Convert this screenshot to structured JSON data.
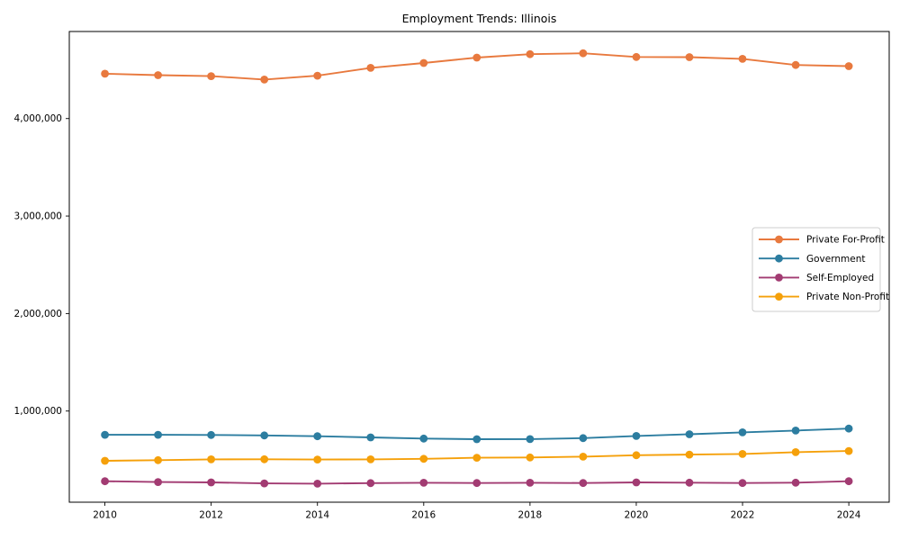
{
  "chart_data": {
    "type": "line",
    "title": "Employment Trends: Illinois",
    "xlabel": "",
    "ylabel": "",
    "grid": false,
    "legend_position": "center right",
    "xlim": [
      2009.33,
      2024.76
    ],
    "ylim": [
      65000,
      4893000
    ],
    "x_ticks": [
      2010,
      2012,
      2014,
      2016,
      2018,
      2020,
      2022,
      2024
    ],
    "y_ticks": [
      1000000,
      2000000,
      3000000,
      4000000
    ],
    "x": [
      2010,
      2011,
      2012,
      2013,
      2014,
      2015,
      2016,
      2017,
      2018,
      2019,
      2020,
      2021,
      2022,
      2023,
      2024
    ],
    "series": [
      {
        "name": "Private For-Profit",
        "color": "#E8793E",
        "values": [
          4460000,
          4445000,
          4435000,
          4400000,
          4440000,
          4520000,
          4570000,
          4625000,
          4660000,
          4670000,
          4632000,
          4630000,
          4612000,
          4550000,
          4538000
        ]
      },
      {
        "name": "Government",
        "color": "#2C7DA0",
        "values": [
          756000,
          756000,
          755000,
          750000,
          742000,
          730000,
          718000,
          711000,
          712000,
          722000,
          744000,
          762000,
          781000,
          800000,
          820000
        ]
      },
      {
        "name": "Self-Employed",
        "color": "#A23B72",
        "values": [
          280000,
          272000,
          268000,
          258000,
          255000,
          261000,
          264000,
          262000,
          264000,
          262000,
          268000,
          265000,
          262000,
          265000,
          280000
        ]
      },
      {
        "name": "Private Non-Profit",
        "color": "#F5A00A",
        "values": [
          490000,
          496000,
          504000,
          505000,
          503000,
          504000,
          510000,
          521000,
          524000,
          532000,
          547000,
          553000,
          560000,
          578000,
          590000
        ]
      }
    ]
  }
}
